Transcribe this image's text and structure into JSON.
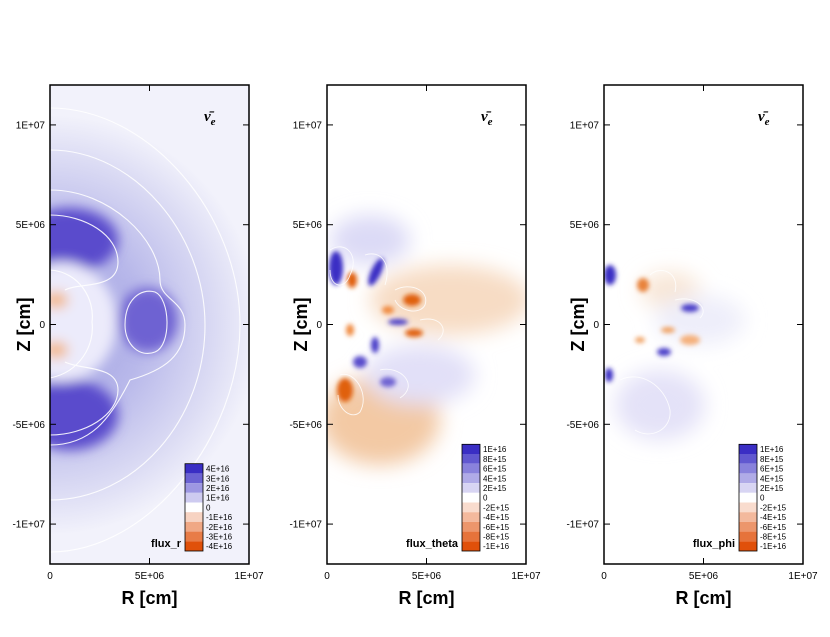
{
  "chart_data": [
    {
      "type": "heatmap",
      "panel_label": "flux_r",
      "species": "ν̄",
      "species_sub": "e",
      "xlabel": "R [cm]",
      "ylabel": "Z [cm]",
      "xlim": [
        0,
        10000000
      ],
      "ylim": [
        -12000000,
        12000000
      ],
      "xticks": [
        0,
        5000000,
        10000000
      ],
      "xtick_labels": [
        "0",
        "5E+06",
        "1E+07"
      ],
      "yticks": [
        10000000,
        5000000,
        0,
        -5000000,
        -10000000
      ],
      "ytick_labels": [
        "1E+07",
        "5E+06",
        "0",
        "-5E+06",
        "-1E+07"
      ],
      "colorbar": {
        "levels": [
          40000000000000000,
          30000000000000000,
          20000000000000000,
          10000000000000000,
          0,
          -10000000000000000,
          -20000000000000000,
          -30000000000000000,
          -40000000000000000
        ],
        "labels": [
          "4E+16",
          "3E+16",
          "2E+16",
          "1E+16",
          "0",
          "-1E+16",
          "-2E+16",
          "-3E+16",
          "-4E+16"
        ]
      }
    },
    {
      "type": "heatmap",
      "panel_label": "flux_theta",
      "species": "ν̄",
      "species_sub": "e",
      "xlabel": "R [cm]",
      "ylabel": "Z [cm]",
      "xlim": [
        0,
        10000000
      ],
      "ylim": [
        -12000000,
        12000000
      ],
      "xticks": [
        0,
        5000000,
        10000000
      ],
      "xtick_labels": [
        "0",
        "5E+06",
        "1E+07"
      ],
      "yticks": [
        10000000,
        5000000,
        0,
        -5000000,
        -10000000
      ],
      "ytick_labels": [
        "1E+07",
        "5E+06",
        "0",
        "-5E+06",
        "-1E+07"
      ],
      "colorbar": {
        "levels": [
          10000000000000000,
          8000000000000000,
          6000000000000000,
          4000000000000000,
          2000000000000000,
          0,
          -2000000000000000,
          -4000000000000000,
          -6000000000000000,
          -8000000000000000,
          -10000000000000000
        ],
        "labels": [
          "1E+16",
          "8E+15",
          "6E+15",
          "4E+15",
          "2E+15",
          "0",
          "-2E+15",
          "-4E+15",
          "-6E+15",
          "-8E+15",
          "-1E+16"
        ]
      }
    },
    {
      "type": "heatmap",
      "panel_label": "flux_phi",
      "species": "ν̄",
      "species_sub": "e",
      "xlabel": "R [cm]",
      "ylabel": "Z [cm]",
      "xlim": [
        0,
        10000000
      ],
      "ylim": [
        -12000000,
        12000000
      ],
      "xticks": [
        0,
        5000000,
        10000000
      ],
      "xtick_labels": [
        "0",
        "5E+06",
        "1E+07"
      ],
      "yticks": [
        10000000,
        5000000,
        0,
        -5000000,
        -10000000
      ],
      "ytick_labels": [
        "1E+07",
        "5E+06",
        "0",
        "-5E+06",
        "-1E+07"
      ],
      "colorbar": {
        "levels": [
          10000000000000000,
          8000000000000000,
          6000000000000000,
          4000000000000000,
          2000000000000000,
          0,
          -2000000000000000,
          -4000000000000000,
          -6000000000000000,
          -8000000000000000,
          -10000000000000000
        ],
        "labels": [
          "1E+16",
          "8E+15",
          "6E+15",
          "4E+15",
          "2E+15",
          "0",
          "-2E+15",
          "-4E+15",
          "-6E+15",
          "-8E+15",
          "-1E+16"
        ]
      }
    }
  ],
  "colors": {
    "positive_max": "#3a2ec4",
    "zero": "#ffffff",
    "negative_max": "#e0500a"
  }
}
